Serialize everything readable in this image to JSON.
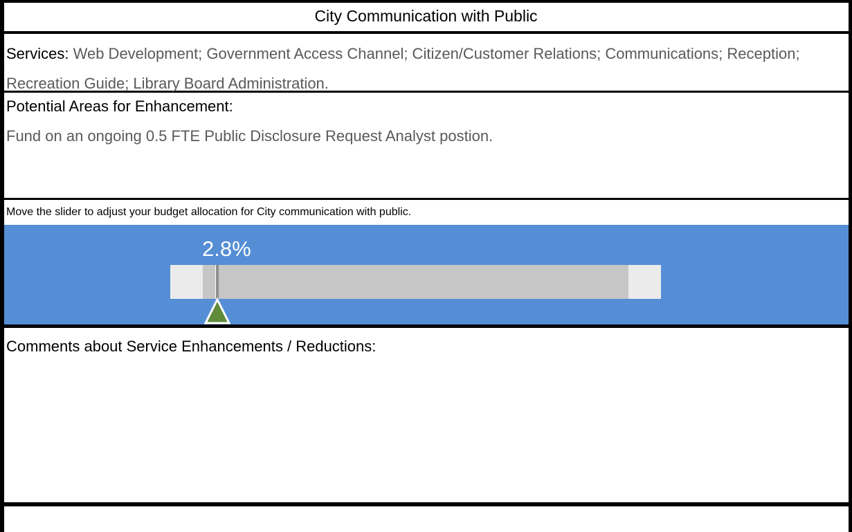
{
  "title": "City Communication with Public",
  "services": {
    "label": "Services:",
    "text": "Web Development; Government Access Channel; Citizen/Customer Relations; Communications; Reception; Recreation Guide; Library Board Administration."
  },
  "enhancement": {
    "title": "Potential Areas for Enhancement:",
    "text": "Fund on an ongoing 0.5 FTE Public Disclosure Request Analyst postion."
  },
  "slider": {
    "prompt": "Move the slider to adjust your budget allocation for City communication with public.",
    "label": "2.8%"
  },
  "comments": {
    "title": "Comments about Service Enhancements / Reductions:"
  }
}
